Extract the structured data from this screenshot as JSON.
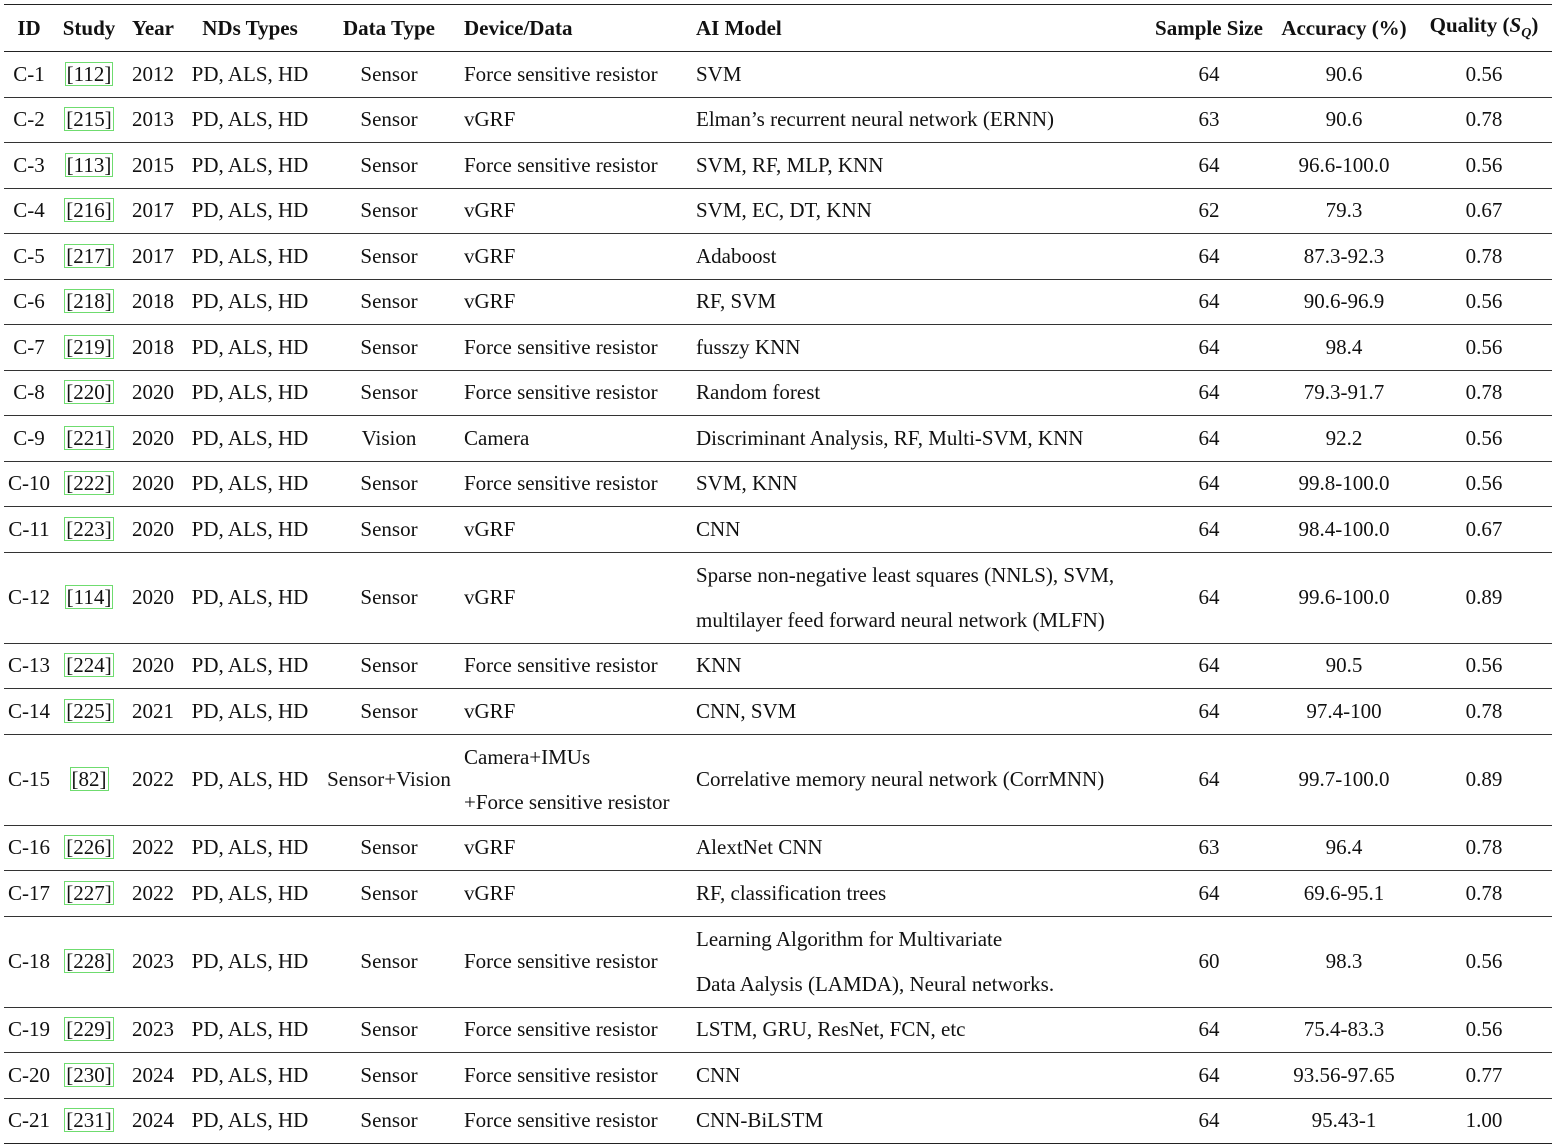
{
  "table": {
    "headers": {
      "id": "ID",
      "study": "Study",
      "year": "Year",
      "nds": "NDs Types",
      "data_type": "Data Type",
      "device": "Device/Data",
      "model": "AI Model",
      "sample": "Sample Size",
      "accuracy": "Accuracy (%)",
      "quality_prefix": "Quality (",
      "quality_s": "S",
      "quality_sub": "Q",
      "quality_suffix": ")"
    },
    "rows": [
      {
        "id": "C-1",
        "study": "[112]",
        "year": "2012",
        "nds": "PD, ALS, HD",
        "data_type": "Sensor",
        "device": [
          "Force sensitive resistor"
        ],
        "model": [
          "SVM"
        ],
        "sample": "64",
        "accuracy": "90.6",
        "quality": "0.56"
      },
      {
        "id": "C-2",
        "study": "[215]",
        "year": "2013",
        "nds": "PD, ALS, HD",
        "data_type": "Sensor",
        "device": [
          "vGRF"
        ],
        "model": [
          "Elman’s recurrent neural network (ERNN)"
        ],
        "sample": "63",
        "accuracy": "90.6",
        "quality": "0.78"
      },
      {
        "id": "C-3",
        "study": "[113]",
        "year": "2015",
        "nds": "PD, ALS, HD",
        "data_type": "Sensor",
        "device": [
          "Force sensitive resistor"
        ],
        "model": [
          "SVM, RF, MLP, KNN"
        ],
        "sample": "64",
        "accuracy": "96.6-100.0",
        "quality": "0.56"
      },
      {
        "id": "C-4",
        "study": "[216]",
        "year": "2017",
        "nds": "PD, ALS, HD",
        "data_type": "Sensor",
        "device": [
          "vGRF"
        ],
        "model": [
          "SVM, EC, DT, KNN"
        ],
        "sample": "62",
        "accuracy": "79.3",
        "quality": "0.67"
      },
      {
        "id": "C-5",
        "study": "[217]",
        "year": "2017",
        "nds": "PD, ALS, HD",
        "data_type": "Sensor",
        "device": [
          "vGRF"
        ],
        "model": [
          "Adaboost"
        ],
        "sample": "64",
        "accuracy": "87.3-92.3",
        "quality": "0.78"
      },
      {
        "id": "C-6",
        "study": "[218]",
        "year": "2018",
        "nds": "PD, ALS, HD",
        "data_type": "Sensor",
        "device": [
          "vGRF"
        ],
        "model": [
          "RF, SVM"
        ],
        "sample": "64",
        "accuracy": "90.6-96.9",
        "quality": "0.56"
      },
      {
        "id": "C-7",
        "study": "[219]",
        "year": "2018",
        "nds": "PD, ALS, HD",
        "data_type": "Sensor",
        "device": [
          "Force sensitive resistor"
        ],
        "model": [
          "fusszy KNN"
        ],
        "sample": "64",
        "accuracy": "98.4",
        "quality": "0.56"
      },
      {
        "id": "C-8",
        "study": "[220]",
        "year": "2020",
        "nds": "PD, ALS, HD",
        "data_type": "Sensor",
        "device": [
          "Force sensitive resistor"
        ],
        "model": [
          "Random forest"
        ],
        "sample": "64",
        "accuracy": "79.3-91.7",
        "quality": "0.78"
      },
      {
        "id": "C-9",
        "study": "[221]",
        "year": "2020",
        "nds": "PD, ALS, HD",
        "data_type": "Vision",
        "device": [
          "Camera"
        ],
        "model": [
          "Discriminant Analysis, RF, Multi-SVM, KNN"
        ],
        "sample": "64",
        "accuracy": "92.2",
        "quality": "0.56"
      },
      {
        "id": "C-10",
        "study": "[222]",
        "year": "2020",
        "nds": "PD, ALS, HD",
        "data_type": "Sensor",
        "device": [
          "Force sensitive resistor"
        ],
        "model": [
          "SVM, KNN"
        ],
        "sample": "64",
        "accuracy": "99.8-100.0",
        "quality": "0.56"
      },
      {
        "id": "C-11",
        "study": "[223]",
        "year": "2020",
        "nds": "PD, ALS, HD",
        "data_type": "Sensor",
        "device": [
          "vGRF"
        ],
        "model": [
          "CNN"
        ],
        "sample": "64",
        "accuracy": "98.4-100.0",
        "quality": "0.67"
      },
      {
        "id": "C-12",
        "study": "[114]",
        "year": "2020",
        "nds": "PD, ALS, HD",
        "data_type": "Sensor",
        "device": [
          "vGRF"
        ],
        "model": [
          "Sparse non-negative least squares (NNLS), SVM,",
          "multilayer feed forward neural network (MLFN)"
        ],
        "sample": "64",
        "accuracy": "99.6-100.0",
        "quality": "0.89"
      },
      {
        "id": "C-13",
        "study": "[224]",
        "year": "2020",
        "nds": "PD, ALS, HD",
        "data_type": "Sensor",
        "device": [
          "Force sensitive resistor"
        ],
        "model": [
          "KNN"
        ],
        "sample": "64",
        "accuracy": "90.5",
        "quality": "0.56"
      },
      {
        "id": "C-14",
        "study": "[225]",
        "year": "2021",
        "nds": "PD, ALS, HD",
        "data_type": "Sensor",
        "device": [
          "vGRF"
        ],
        "model": [
          "CNN, SVM"
        ],
        "sample": "64",
        "accuracy": "97.4-100",
        "quality": "0.78"
      },
      {
        "id": "C-15",
        "study": "[82]",
        "year": "2022",
        "nds": "PD, ALS, HD",
        "data_type": "Sensor+Vision",
        "device": [
          "Camera+IMUs",
          "+Force sensitive resistor"
        ],
        "model": [
          "Correlative memory neural network (CorrMNN)"
        ],
        "sample": "64",
        "accuracy": "99.7-100.0",
        "quality": "0.89"
      },
      {
        "id": "C-16",
        "study": "[226]",
        "year": "2022",
        "nds": "PD, ALS, HD",
        "data_type": "Sensor",
        "device": [
          "vGRF"
        ],
        "model": [
          "AlextNet CNN"
        ],
        "sample": "63",
        "accuracy": "96.4",
        "quality": "0.78"
      },
      {
        "id": "C-17",
        "study": "[227]",
        "year": "2022",
        "nds": "PD, ALS, HD",
        "data_type": "Sensor",
        "device": [
          "vGRF"
        ],
        "model": [
          "RF, classification trees"
        ],
        "sample": "64",
        "accuracy": "69.6-95.1",
        "quality": "0.78"
      },
      {
        "id": "C-18",
        "study": "[228]",
        "year": "2023",
        "nds": "PD, ALS, HD",
        "data_type": "Sensor",
        "device": [
          "Force sensitive resistor"
        ],
        "model": [
          "Learning Algorithm for Multivariate",
          "Data Aalysis (LAMDA), Neural networks."
        ],
        "sample": "60",
        "accuracy": "98.3",
        "quality": "0.56"
      },
      {
        "id": "C-19",
        "study": "[229]",
        "year": "2023",
        "nds": "PD, ALS, HD",
        "data_type": "Sensor",
        "device": [
          "Force sensitive resistor"
        ],
        "model": [
          "LSTM, GRU, ResNet, FCN, etc"
        ],
        "sample": "64",
        "accuracy": "75.4-83.3",
        "quality": "0.56"
      },
      {
        "id": "C-20",
        "study": "[230]",
        "year": "2024",
        "nds": "PD, ALS, HD",
        "data_type": "Sensor",
        "device": [
          "Force sensitive resistor"
        ],
        "model": [
          "CNN"
        ],
        "sample": "64",
        "accuracy": "93.56-97.65",
        "quality": "0.77"
      },
      {
        "id": "C-21",
        "study": "[231]",
        "year": "2024",
        "nds": "PD, ALS, HD",
        "data_type": "Sensor",
        "device": [
          "Force sensitive resistor"
        ],
        "model": [
          "CNN-BiLSTM"
        ],
        "sample": "64",
        "accuracy": "95.43-1",
        "quality": "1.00"
      }
    ]
  }
}
